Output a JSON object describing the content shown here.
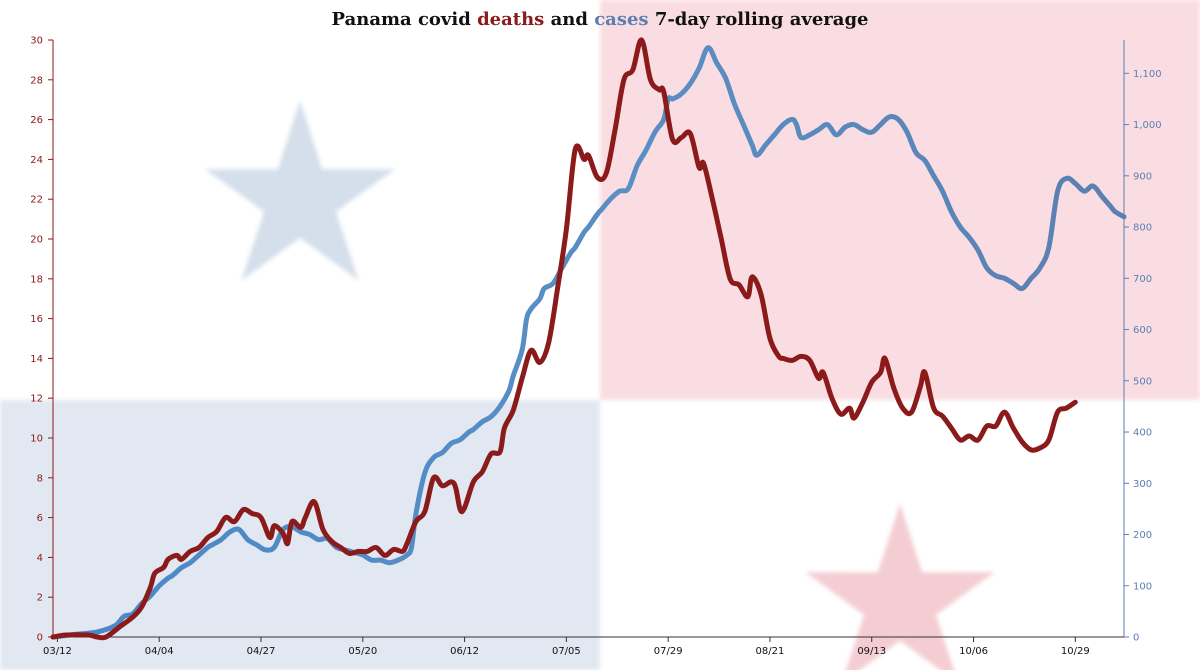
{
  "chart_data": {
    "type": "line",
    "title": {
      "parts": [
        {
          "text": "Panama covid ",
          "color": "#111111"
        },
        {
          "text": "deaths",
          "color": "#8b1a1a"
        },
        {
          "text": " and ",
          "color": "#111111"
        },
        {
          "text": "cases",
          "color": "#5b7fb0"
        },
        {
          "text": " 7-day rolling average",
          "color": "#111111"
        }
      ]
    },
    "x_ticks": [
      {
        "label": "03/12",
        "day": 1
      },
      {
        "label": "04/04",
        "day": 24
      },
      {
        "label": "04/27",
        "day": 47
      },
      {
        "label": "05/20",
        "day": 70
      },
      {
        "label": "06/12",
        "day": 93
      },
      {
        "label": "07/05",
        "day": 116
      },
      {
        "label": "07/29",
        "day": 139
      },
      {
        "label": "08/21",
        "day": 162
      },
      {
        "label": "09/13",
        "day": 185
      },
      {
        "label": "10/06",
        "day": 208
      },
      {
        "label": "10/29",
        "day": 231
      }
    ],
    "xlim": [
      0,
      242
    ],
    "y_left": {
      "ylim": [
        0,
        30
      ],
      "ticks": [
        0,
        2,
        4,
        6,
        8,
        10,
        12,
        14,
        16,
        18,
        20,
        22,
        24,
        26,
        28,
        30
      ],
      "color": "#8b1a1a"
    },
    "y_right": {
      "ylim": [
        0,
        1165
      ],
      "ticks": [
        0,
        100,
        200,
        300,
        400,
        500,
        600,
        700,
        800,
        900,
        1000,
        1100
      ],
      "tick_labels": [
        "0",
        "100",
        "200",
        "300",
        "400",
        "500",
        "600",
        "700",
        "800",
        "900",
        "1,000",
        "1,100"
      ],
      "color": "#5b7fb0"
    },
    "series": [
      {
        "name": "deaths",
        "axis": "left",
        "color": "#8b1a1a",
        "points": [
          [
            0,
            0
          ],
          [
            3,
            0.1
          ],
          [
            8,
            0.1
          ],
          [
            10,
            0
          ],
          [
            12,
            0
          ],
          [
            15,
            0.5
          ],
          [
            18,
            1
          ],
          [
            20,
            1.5
          ],
          [
            22,
            2.5
          ],
          [
            23,
            3.2
          ],
          [
            25,
            3.5
          ],
          [
            26,
            3.9
          ],
          [
            28,
            4.1
          ],
          [
            29,
            3.9
          ],
          [
            31,
            4.3
          ],
          [
            33,
            4.5
          ],
          [
            35,
            5
          ],
          [
            37,
            5.3
          ],
          [
            39,
            6
          ],
          [
            41,
            5.8
          ],
          [
            43,
            6.4
          ],
          [
            45,
            6.2
          ],
          [
            47,
            6
          ],
          [
            49,
            5
          ],
          [
            50,
            5.6
          ],
          [
            52,
            5.2
          ],
          [
            53,
            4.7
          ],
          [
            54,
            5.8
          ],
          [
            56,
            5.5
          ],
          [
            57,
            6
          ],
          [
            59,
            6.8
          ],
          [
            61,
            5.4
          ],
          [
            63,
            4.8
          ],
          [
            65,
            4.5
          ],
          [
            67,
            4.2
          ],
          [
            69,
            4.3
          ],
          [
            71,
            4.3
          ],
          [
            73,
            4.5
          ],
          [
            75,
            4.1
          ],
          [
            77,
            4.4
          ],
          [
            79,
            4.3
          ],
          [
            80,
            4.7
          ],
          [
            82,
            5.8
          ],
          [
            84,
            6.3
          ],
          [
            86,
            8
          ],
          [
            88,
            7.6
          ],
          [
            90,
            7.8
          ],
          [
            91,
            7.5
          ],
          [
            92,
            6.4
          ],
          [
            93,
            6.5
          ],
          [
            95,
            7.8
          ],
          [
            97,
            8.3
          ],
          [
            99,
            9.2
          ],
          [
            101,
            9.3
          ],
          [
            102,
            10.5
          ],
          [
            104,
            11.4
          ],
          [
            106,
            13
          ],
          [
            108,
            14.4
          ],
          [
            110,
            13.8
          ],
          [
            112,
            14.8
          ],
          [
            114,
            17.5
          ],
          [
            116,
            20.5
          ],
          [
            118,
            24.5
          ],
          [
            120,
            24
          ],
          [
            121,
            24.2
          ],
          [
            123,
            23.1
          ],
          [
            125,
            23.3
          ],
          [
            127,
            25.5
          ],
          [
            129,
            28
          ],
          [
            131,
            28.5
          ],
          [
            133,
            30
          ],
          [
            135,
            28
          ],
          [
            137,
            27.5
          ],
          [
            138,
            27.4
          ],
          [
            140,
            25
          ],
          [
            142,
            25.1
          ],
          [
            144,
            25.3
          ],
          [
            146,
            23.6
          ],
          [
            147,
            23.8
          ],
          [
            149,
            22
          ],
          [
            151,
            20
          ],
          [
            153,
            18
          ],
          [
            155,
            17.7
          ],
          [
            157,
            17.1
          ],
          [
            158,
            18.1
          ],
          [
            160,
            17.2
          ],
          [
            162,
            15
          ],
          [
            164,
            14.1
          ],
          [
            165,
            14
          ],
          [
            167,
            13.9
          ],
          [
            169,
            14.1
          ],
          [
            171,
            13.9
          ],
          [
            173,
            13
          ],
          [
            174,
            13.3
          ],
          [
            176,
            12
          ],
          [
            178,
            11.2
          ],
          [
            180,
            11.5
          ],
          [
            181,
            11
          ],
          [
            183,
            11.8
          ],
          [
            185,
            12.8
          ],
          [
            187,
            13.3
          ],
          [
            188,
            14
          ],
          [
            190,
            12.5
          ],
          [
            192,
            11.5
          ],
          [
            194,
            11.3
          ],
          [
            196,
            12.6
          ],
          [
            197,
            13.3
          ],
          [
            199,
            11.5
          ],
          [
            201,
            11.1
          ],
          [
            203,
            10.5
          ],
          [
            205,
            9.9
          ],
          [
            207,
            10.1
          ],
          [
            209,
            9.9
          ],
          [
            211,
            10.6
          ],
          [
            213,
            10.6
          ],
          [
            215,
            11.3
          ],
          [
            217,
            10.5
          ],
          [
            219,
            9.8
          ],
          [
            221,
            9.4
          ],
          [
            223,
            9.5
          ],
          [
            225,
            9.9
          ],
          [
            227,
            11.3
          ],
          [
            229,
            11.5
          ],
          [
            231,
            11.8
          ]
        ]
      },
      {
        "name": "cases",
        "axis": "right",
        "color": "#5b7fb0",
        "points": [
          [
            0,
            0
          ],
          [
            5,
            5
          ],
          [
            10,
            10
          ],
          [
            14,
            22
          ],
          [
            16,
            40
          ],
          [
            18,
            45
          ],
          [
            20,
            65
          ],
          [
            22,
            80
          ],
          [
            24,
            100
          ],
          [
            26,
            115
          ],
          [
            27,
            120
          ],
          [
            29,
            135
          ],
          [
            31,
            145
          ],
          [
            33,
            160
          ],
          [
            35,
            175
          ],
          [
            36,
            180
          ],
          [
            38,
            190
          ],
          [
            40,
            205
          ],
          [
            42,
            210
          ],
          [
            44,
            190
          ],
          [
            46,
            180
          ],
          [
            48,
            170
          ],
          [
            50,
            175
          ],
          [
            52,
            210
          ],
          [
            54,
            215
          ],
          [
            56,
            205
          ],
          [
            58,
            200
          ],
          [
            60,
            190
          ],
          [
            62,
            192
          ],
          [
            64,
            175
          ],
          [
            66,
            170
          ],
          [
            68,
            165
          ],
          [
            70,
            160
          ],
          [
            72,
            150
          ],
          [
            74,
            150
          ],
          [
            76,
            145
          ],
          [
            78,
            150
          ],
          [
            80,
            160
          ],
          [
            81,
            175
          ],
          [
            82,
            240
          ],
          [
            84,
            320
          ],
          [
            86,
            350
          ],
          [
            88,
            360
          ],
          [
            90,
            378
          ],
          [
            92,
            385
          ],
          [
            94,
            400
          ],
          [
            95,
            405
          ],
          [
            97,
            420
          ],
          [
            99,
            430
          ],
          [
            101,
            450
          ],
          [
            103,
            480
          ],
          [
            104,
            510
          ],
          [
            106,
            560
          ],
          [
            107,
            620
          ],
          [
            108,
            640
          ],
          [
            110,
            660
          ],
          [
            111,
            680
          ],
          [
            113,
            690
          ],
          [
            115,
            720
          ],
          [
            117,
            750
          ],
          [
            118,
            760
          ],
          [
            120,
            790
          ],
          [
            121,
            800
          ],
          [
            123,
            825
          ],
          [
            124,
            835
          ],
          [
            126,
            855
          ],
          [
            128,
            870
          ],
          [
            130,
            875
          ],
          [
            132,
            920
          ],
          [
            134,
            950
          ],
          [
            136,
            985
          ],
          [
            138,
            1010
          ],
          [
            139,
            1050
          ],
          [
            140,
            1050
          ],
          [
            142,
            1060
          ],
          [
            144,
            1080
          ],
          [
            146,
            1110
          ],
          [
            148,
            1150
          ],
          [
            150,
            1120
          ],
          [
            152,
            1090
          ],
          [
            154,
            1040
          ],
          [
            156,
            1000
          ],
          [
            158,
            960
          ],
          [
            159,
            940
          ],
          [
            161,
            960
          ],
          [
            163,
            980
          ],
          [
            165,
            1000
          ],
          [
            167,
            1010
          ],
          [
            168,
            1000
          ],
          [
            169,
            975
          ],
          [
            171,
            980
          ],
          [
            173,
            990
          ],
          [
            175,
            1000
          ],
          [
            177,
            980
          ],
          [
            179,
            995
          ],
          [
            181,
            1000
          ],
          [
            183,
            990
          ],
          [
            185,
            985
          ],
          [
            187,
            1000
          ],
          [
            189,
            1015
          ],
          [
            191,
            1010
          ],
          [
            193,
            985
          ],
          [
            195,
            945
          ],
          [
            197,
            930
          ],
          [
            199,
            900
          ],
          [
            201,
            870
          ],
          [
            203,
            830
          ],
          [
            205,
            800
          ],
          [
            207,
            780
          ],
          [
            209,
            755
          ],
          [
            211,
            720
          ],
          [
            213,
            705
          ],
          [
            215,
            700
          ],
          [
            217,
            690
          ],
          [
            219,
            680
          ],
          [
            221,
            700
          ],
          [
            223,
            720
          ],
          [
            225,
            760
          ],
          [
            227,
            870
          ],
          [
            229,
            895
          ],
          [
            231,
            885
          ],
          [
            233,
            870
          ],
          [
            235,
            880
          ],
          [
            237,
            860
          ],
          [
            239,
            840
          ],
          [
            240,
            830
          ],
          [
            242,
            820
          ]
        ]
      }
    ],
    "grid": false,
    "legend": "none"
  },
  "background": {
    "flag_top_left": "#ffffff",
    "flag_top_right": "#f9dde2",
    "flag_bottom_left": "#e1e8f1",
    "flag_bottom_right": "#ffffff",
    "star_blue": "#d4dfeb",
    "star_red": "#f4cdd3"
  }
}
